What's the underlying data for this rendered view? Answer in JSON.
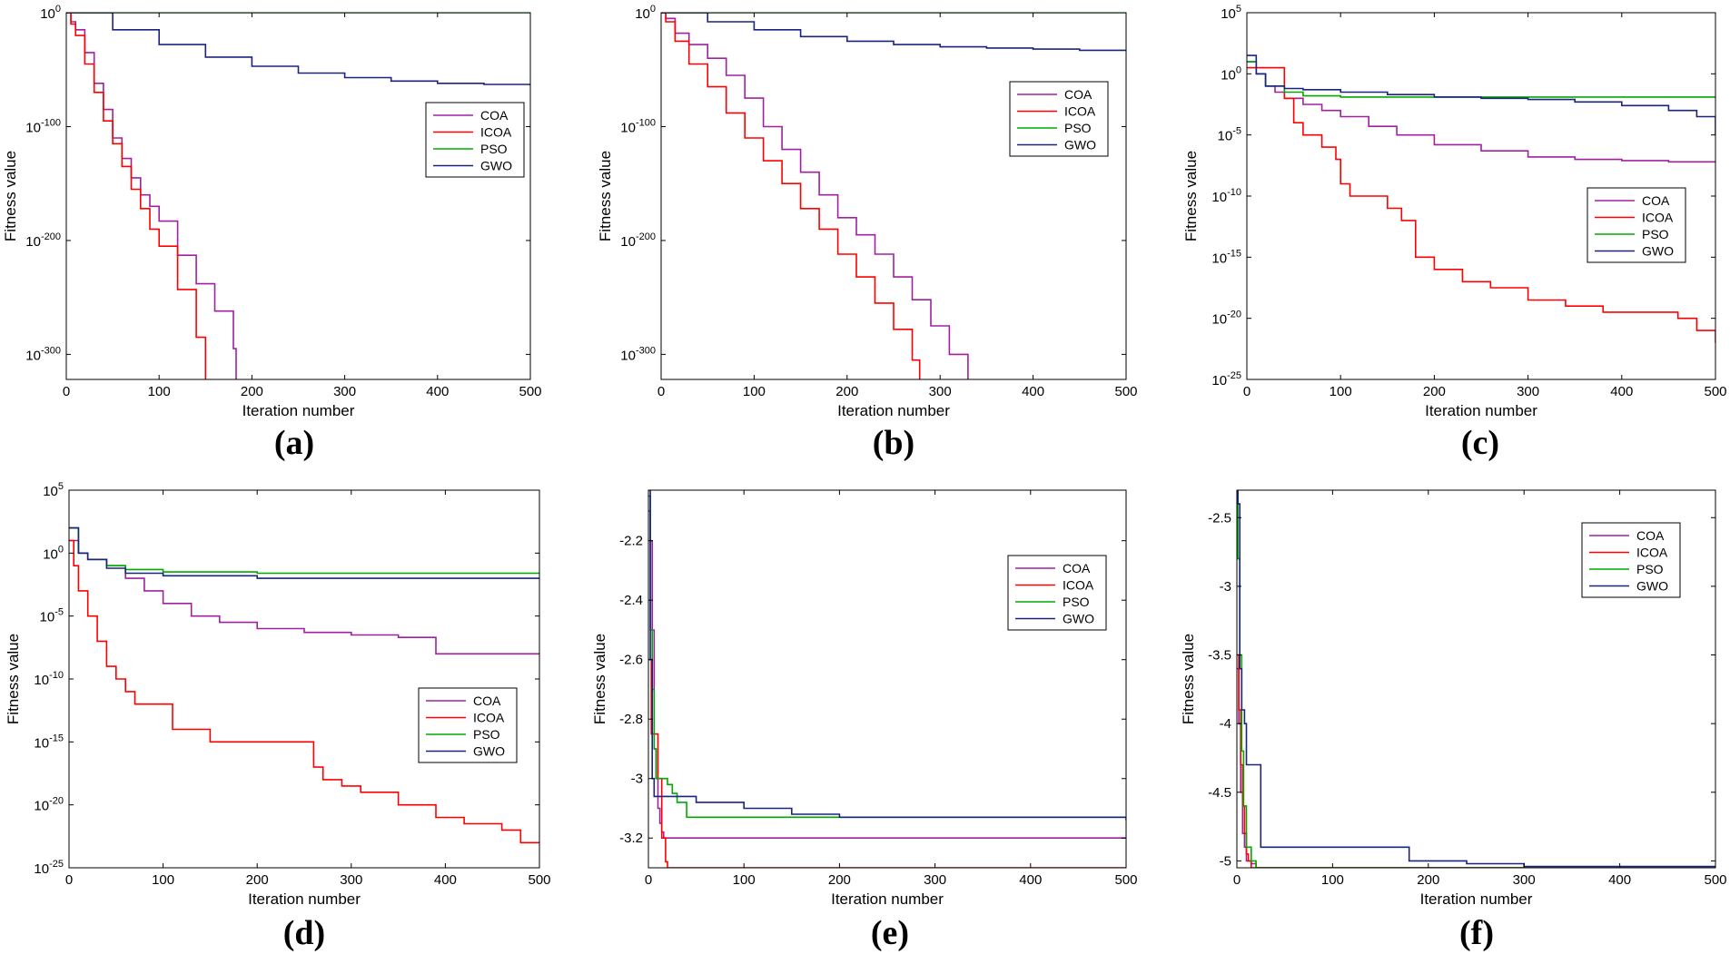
{
  "chart_data": [
    {
      "type": "line",
      "panel_label": "(a)",
      "xlabel": "Iteration number",
      "ylabel": "Fitness value",
      "xlim": [
        0,
        500
      ],
      "xticks": [
        0,
        100,
        200,
        300,
        400,
        500
      ],
      "yscale": "log",
      "ylim_exponent": [
        -322,
        0
      ],
      "yticks": [
        {
          "exp": 0,
          "label": "0"
        },
        {
          "exp": -100,
          "label": "-100"
        },
        {
          "exp": -200,
          "label": "-200"
        },
        {
          "exp": -300,
          "label": "-300"
        }
      ],
      "legend": {
        "position": "right-middle",
        "entries": [
          "COA",
          "ICOA",
          "PSO",
          "GWO"
        ]
      },
      "series": [
        {
          "name": "COA",
          "color": "#a020a0",
          "x": [
            0,
            5,
            10,
            20,
            30,
            40,
            50,
            60,
            70,
            80,
            90,
            100,
            120,
            140,
            160,
            180,
            183
          ],
          "log10y": [
            0,
            -8,
            -15,
            -35,
            -62,
            -85,
            -110,
            -128,
            -145,
            -160,
            -170,
            -183,
            -213,
            -238,
            -262,
            -295,
            -322
          ]
        },
        {
          "name": "ICOA",
          "color": "#ff0000",
          "x": [
            0,
            5,
            10,
            20,
            30,
            40,
            50,
            60,
            70,
            80,
            90,
            100,
            120,
            140,
            150
          ],
          "log10y": [
            0,
            -10,
            -20,
            -45,
            -70,
            -95,
            -115,
            -135,
            -155,
            -172,
            -190,
            -205,
            -243,
            -285,
            -322
          ]
        },
        {
          "name": "PSO",
          "color": "#00aa00",
          "x": [
            0,
            500
          ],
          "log10y": [
            0,
            0
          ]
        },
        {
          "name": "GWO",
          "color": "#1a237e",
          "x": [
            0,
            50,
            100,
            150,
            200,
            250,
            300,
            350,
            400,
            450,
            500
          ],
          "log10y": [
            0,
            -15,
            -28,
            -39,
            -47,
            -53,
            -57,
            -60,
            -62,
            -63,
            -64
          ]
        }
      ]
    },
    {
      "type": "line",
      "panel_label": "(b)",
      "xlabel": "Iteration number",
      "ylabel": "Fitness value",
      "xlim": [
        0,
        500
      ],
      "xticks": [
        0,
        100,
        200,
        300,
        400,
        500
      ],
      "yscale": "log",
      "ylim_exponent": [
        -322,
        0
      ],
      "yticks": [
        {
          "exp": 0,
          "label": "0"
        },
        {
          "exp": -100,
          "label": "-100"
        },
        {
          "exp": -200,
          "label": "-200"
        },
        {
          "exp": -300,
          "label": "-300"
        }
      ],
      "legend": {
        "position": "top-right",
        "entries": [
          "COA",
          "ICOA",
          "PSO",
          "GWO"
        ]
      },
      "series": [
        {
          "name": "COA",
          "color": "#a020a0",
          "x": [
            0,
            5,
            15,
            30,
            50,
            70,
            90,
            110,
            130,
            150,
            170,
            190,
            210,
            230,
            250,
            270,
            290,
            310,
            330
          ],
          "log10y": [
            0,
            -5,
            -18,
            -28,
            -40,
            -55,
            -75,
            -100,
            -120,
            -140,
            -160,
            -180,
            -195,
            -212,
            -232,
            -252,
            -275,
            -300,
            -322
          ]
        },
        {
          "name": "ICOA",
          "color": "#ff0000",
          "x": [
            0,
            5,
            15,
            30,
            50,
            70,
            90,
            110,
            130,
            150,
            170,
            190,
            210,
            230,
            250,
            270,
            278
          ],
          "log10y": [
            0,
            -8,
            -25,
            -45,
            -65,
            -88,
            -110,
            -130,
            -150,
            -172,
            -190,
            -212,
            -232,
            -255,
            -278,
            -305,
            -322
          ]
        },
        {
          "name": "PSO",
          "color": "#00aa00",
          "x": [
            0,
            500
          ],
          "log10y": [
            0,
            0
          ]
        },
        {
          "name": "GWO",
          "color": "#1a237e",
          "x": [
            0,
            50,
            100,
            150,
            200,
            250,
            300,
            350,
            400,
            450,
            500
          ],
          "log10y": [
            0,
            -8,
            -15,
            -21,
            -25,
            -28,
            -30,
            -31,
            -32,
            -33,
            -33
          ]
        }
      ]
    },
    {
      "type": "line",
      "panel_label": "(c)",
      "xlabel": "Iteration number",
      "ylabel": "Fitness value",
      "xlim": [
        0,
        500
      ],
      "xticks": [
        0,
        100,
        200,
        300,
        400,
        500
      ],
      "yscale": "log",
      "ylim_exponent": [
        -25,
        5
      ],
      "yticks": [
        {
          "exp": 5,
          "label": "5"
        },
        {
          "exp": 0,
          "label": "0"
        },
        {
          "exp": -5,
          "label": "-5"
        },
        {
          "exp": -10,
          "label": "-10"
        },
        {
          "exp": -15,
          "label": "-15"
        },
        {
          "exp": -20,
          "label": "-20"
        },
        {
          "exp": -25,
          "label": "-25"
        }
      ],
      "legend": {
        "position": "right-middle",
        "entries": [
          "COA",
          "ICOA",
          "PSO",
          "GWO"
        ]
      },
      "series": [
        {
          "name": "COA",
          "color": "#a020a0",
          "x": [
            0,
            10,
            20,
            30,
            40,
            60,
            80,
            100,
            130,
            160,
            200,
            250,
            300,
            350,
            400,
            450,
            500
          ],
          "log10y": [
            1,
            0,
            -1,
            -1.5,
            -2,
            -2.5,
            -3,
            -3.5,
            -4.3,
            -5,
            -5.8,
            -6.3,
            -6.8,
            -7,
            -7.1,
            -7.2,
            -7.2
          ]
        },
        {
          "name": "ICOA",
          "color": "#ff0000",
          "x": [
            0,
            10,
            20,
            35,
            40,
            50,
            60,
            80,
            95,
            100,
            110,
            130,
            150,
            165,
            180,
            200,
            230,
            260,
            300,
            340,
            380,
            420,
            460,
            480,
            500
          ],
          "log10y": [
            0.5,
            0.5,
            0.5,
            0.5,
            -2,
            -4,
            -5,
            -6,
            -7,
            -9,
            -10,
            -10,
            -11,
            -12,
            -15,
            -16,
            -17,
            -17.5,
            -18.5,
            -19,
            -19.5,
            -19.5,
            -20,
            -21,
            -22
          ]
        },
        {
          "name": "PSO",
          "color": "#00aa00",
          "x": [
            0,
            10,
            20,
            40,
            60,
            100,
            200,
            300,
            400,
            500
          ],
          "log10y": [
            1,
            0,
            -1,
            -1.5,
            -1.8,
            -1.9,
            -1.9,
            -1.9,
            -1.9,
            -1.9
          ]
        },
        {
          "name": "GWO",
          "color": "#1a237e",
          "x": [
            0,
            10,
            20,
            40,
            60,
            100,
            150,
            200,
            250,
            300,
            350,
            400,
            450,
            480,
            500
          ],
          "log10y": [
            1.5,
            0,
            -1,
            -1.2,
            -1.3,
            -1.5,
            -1.7,
            -1.9,
            -2,
            -2.1,
            -2.3,
            -2.6,
            -3,
            -3.5,
            -5
          ]
        }
      ]
    },
    {
      "type": "line",
      "panel_label": "(d)",
      "xlabel": "Iteration number",
      "ylabel": "Fitness value",
      "xlim": [
        0,
        500
      ],
      "xticks": [
        0,
        100,
        200,
        300,
        400,
        500
      ],
      "yscale": "log",
      "ylim_exponent": [
        -25,
        5
      ],
      "yticks": [
        {
          "exp": 5,
          "label": "5"
        },
        {
          "exp": 0,
          "label": "0"
        },
        {
          "exp": -5,
          "label": "-5"
        },
        {
          "exp": -10,
          "label": "-10"
        },
        {
          "exp": -15,
          "label": "-15"
        },
        {
          "exp": -20,
          "label": "-20"
        },
        {
          "exp": -25,
          "label": "-25"
        }
      ],
      "legend": {
        "position": "right-middle",
        "entries": [
          "COA",
          "ICOA",
          "PSO",
          "GWO"
        ]
      },
      "series": [
        {
          "name": "COA",
          "color": "#a020a0",
          "x": [
            0,
            10,
            20,
            40,
            60,
            80,
            100,
            130,
            160,
            200,
            250,
            300,
            350,
            390,
            420,
            460,
            500
          ],
          "log10y": [
            1,
            0,
            -0.5,
            -1,
            -2,
            -3,
            -4,
            -5,
            -5.5,
            -6,
            -6.3,
            -6.5,
            -6.7,
            -8,
            -8,
            -8,
            -8
          ]
        },
        {
          "name": "ICOA",
          "color": "#ff0000",
          "x": [
            0,
            5,
            10,
            20,
            30,
            40,
            50,
            60,
            70,
            100,
            110,
            150,
            200,
            250,
            260,
            270,
            290,
            310,
            350,
            390,
            420,
            460,
            480,
            500
          ],
          "log10y": [
            1,
            -1,
            -3,
            -5,
            -7,
            -9,
            -10,
            -11,
            -12,
            -12,
            -14,
            -15,
            -15,
            -15,
            -17,
            -18,
            -18.5,
            -19,
            -20,
            -21,
            -21.5,
            -22,
            -23,
            -23
          ]
        },
        {
          "name": "PSO",
          "color": "#00aa00",
          "x": [
            0,
            10,
            20,
            40,
            60,
            100,
            200,
            300,
            400,
            500
          ],
          "log10y": [
            2,
            0,
            -0.5,
            -1,
            -1.3,
            -1.5,
            -1.6,
            -1.6,
            -1.6,
            -1.6
          ]
        },
        {
          "name": "GWO",
          "color": "#1a237e",
          "x": [
            0,
            10,
            20,
            40,
            60,
            100,
            200,
            300,
            400,
            500
          ],
          "log10y": [
            2,
            0,
            -0.5,
            -1.2,
            -1.6,
            -1.8,
            -2,
            -2,
            -2,
            -2
          ]
        }
      ]
    },
    {
      "type": "line",
      "panel_label": "(e)",
      "xlabel": "Iteration number",
      "ylabel": "Fitness value",
      "xlim": [
        0,
        500
      ],
      "xticks": [
        0,
        100,
        200,
        300,
        400,
        500
      ],
      "yscale": "linear",
      "ylim": [
        -3.3,
        -2.03
      ],
      "yticks": [
        -2.2,
        -2.4,
        -2.6,
        -2.8,
        -3,
        -3.2
      ],
      "legend": {
        "position": "top-right",
        "entries": [
          "COA",
          "ICOA",
          "PSO",
          "GWO"
        ]
      },
      "series": [
        {
          "name": "COA",
          "color": "#a020a0",
          "x": [
            0,
            2,
            4,
            6,
            8,
            10,
            12,
            14,
            16,
            20,
            30,
            500
          ],
          "y": [
            -2.1,
            -2.2,
            -2.5,
            -2.9,
            -3.0,
            -3.1,
            -3.15,
            -3.18,
            -3.2,
            -3.2,
            -3.2,
            -3.2
          ]
        },
        {
          "name": "ICOA",
          "color": "#ff0000",
          "x": [
            0,
            3,
            5,
            8,
            10,
            14,
            18,
            20,
            500
          ],
          "y": [
            -2.6,
            -2.85,
            -2.85,
            -2.85,
            -3.0,
            -3.2,
            -3.28,
            -3.3,
            -3.3
          ]
        },
        {
          "name": "PSO",
          "color": "#00aa00",
          "x": [
            0,
            2,
            4,
            6,
            8,
            10,
            20,
            25,
            30,
            40,
            50,
            500
          ],
          "y": [
            -2.05,
            -2.5,
            -2.7,
            -2.9,
            -3.0,
            -3.0,
            -3.02,
            -3.05,
            -3.08,
            -3.13,
            -3.13,
            -3.13
          ]
        },
        {
          "name": "GWO",
          "color": "#1a237e",
          "x": [
            0,
            2,
            4,
            6,
            10,
            20,
            50,
            100,
            150,
            200,
            300,
            400,
            500
          ],
          "y": [
            -2.03,
            -2.6,
            -3.0,
            -3.06,
            -3.06,
            -3.06,
            -3.08,
            -3.1,
            -3.12,
            -3.13,
            -3.13,
            -3.13,
            -3.14
          ]
        }
      ]
    },
    {
      "type": "line",
      "panel_label": "(f)",
      "xlabel": "Iteration number",
      "ylabel": "Fitness value",
      "xlim": [
        0,
        500
      ],
      "xticks": [
        0,
        100,
        200,
        300,
        400,
        500
      ],
      "yscale": "linear",
      "ylim": [
        -5.05,
        -2.3
      ],
      "yticks": [
        -2.5,
        -3,
        -3.5,
        -4,
        -4.5,
        -5
      ],
      "legend": {
        "position": "top-right",
        "entries": [
          "COA",
          "ICOA",
          "PSO",
          "GWO"
        ]
      },
      "series": [
        {
          "name": "COA",
          "color": "#a020a0",
          "x": [
            0,
            2,
            4,
            6,
            8,
            10,
            15,
            20,
            500
          ],
          "y": [
            -3.6,
            -4.0,
            -4.5,
            -4.8,
            -4.9,
            -5.0,
            -5.02,
            -5.05,
            -5.05
          ]
        },
        {
          "name": "ICOA",
          "color": "#ff0000",
          "x": [
            0,
            2,
            4,
            6,
            8,
            10,
            12,
            15,
            500
          ],
          "y": [
            -3.5,
            -3.9,
            -4.3,
            -4.6,
            -4.8,
            -4.95,
            -5.0,
            -5.05,
            -5.05
          ]
        },
        {
          "name": "PSO",
          "color": "#00aa00",
          "x": [
            0,
            1,
            3,
            5,
            7,
            10,
            15,
            20,
            500
          ],
          "y": [
            -2.3,
            -2.8,
            -3.5,
            -4.2,
            -4.6,
            -4.9,
            -5.0,
            -5.05,
            -5.05
          ]
        },
        {
          "name": "GWO",
          "color": "#1a237e",
          "x": [
            0,
            1,
            3,
            5,
            8,
            10,
            15,
            20,
            25,
            175,
            180,
            240,
            300,
            500
          ],
          "y": [
            -2.3,
            -2.4,
            -3.6,
            -3.9,
            -4.0,
            -4.3,
            -4.3,
            -4.3,
            -4.9,
            -4.9,
            -5.0,
            -5.02,
            -5.04,
            -5.05
          ]
        }
      ]
    }
  ]
}
